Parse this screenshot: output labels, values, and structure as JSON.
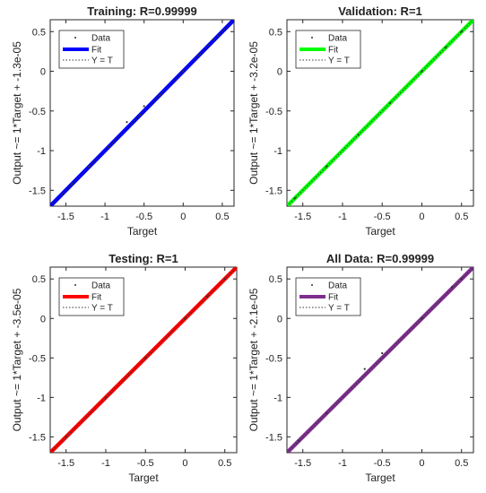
{
  "chart_data": [
    {
      "type": "scatter",
      "title": "Training: R=0.99999",
      "xlabel": "Target",
      "ylabel": "Output ~= 1*Target + -1.3e-05",
      "xlim": [
        -1.7,
        0.65
      ],
      "ylim": [
        -1.7,
        0.65
      ],
      "xticks": [
        "-1.5",
        "-1",
        "-0.5",
        "0",
        "0.5"
      ],
      "yticks": [
        "-1.5",
        "-1",
        "-0.5",
        "0",
        "0.5"
      ],
      "legend": [
        "Data",
        "Fit",
        "Y = T"
      ],
      "legend_position": "top-left",
      "fit_color": "#0000ff",
      "series": [
        {
          "name": "Data",
          "points": [
            [
              -1.55,
              -1.55
            ],
            [
              -1.42,
              -1.42
            ],
            [
              -1.2,
              -1.2
            ],
            [
              -0.95,
              -0.95
            ],
            [
              -0.72,
              -0.64
            ],
            [
              -0.55,
              -0.55
            ],
            [
              -0.5,
              -0.44
            ],
            [
              -0.3,
              -0.3
            ],
            [
              0.0,
              0.0
            ],
            [
              0.2,
              0.2
            ],
            [
              0.33,
              0.33
            ],
            [
              0.38,
              0.4
            ],
            [
              0.45,
              0.45
            ]
          ]
        },
        {
          "name": "Fit",
          "line": [
            [
              -1.7,
              -1.7
            ],
            [
              0.65,
              0.65
            ]
          ]
        },
        {
          "name": "Y = T",
          "line": [
            [
              -1.7,
              -1.7
            ],
            [
              0.65,
              0.65
            ]
          ]
        }
      ]
    },
    {
      "type": "scatter",
      "title": "Validation: R=1",
      "xlabel": "Target",
      "ylabel": "Output ~= 1*Target + -3.2e-05",
      "xlim": [
        -1.7,
        0.65
      ],
      "ylim": [
        -1.7,
        0.65
      ],
      "xticks": [
        "-1.5",
        "-1",
        "-0.5",
        "0",
        "0.5"
      ],
      "yticks": [
        "-1.5",
        "-1",
        "-0.5",
        "0",
        "0.5"
      ],
      "legend": [
        "Data",
        "Fit",
        "Y = T"
      ],
      "legend_position": "top-left",
      "fit_color": "#00ff00",
      "series": [
        {
          "name": "Data",
          "points": [
            [
              -1.6,
              -1.6
            ],
            [
              -1.2,
              -1.2
            ],
            [
              -0.8,
              -0.8
            ],
            [
              -0.4,
              -0.4
            ],
            [
              0.0,
              0.0
            ],
            [
              0.3,
              0.3
            ],
            [
              0.5,
              0.5
            ]
          ]
        },
        {
          "name": "Fit",
          "line": [
            [
              -1.7,
              -1.7
            ],
            [
              0.65,
              0.65
            ]
          ]
        },
        {
          "name": "Y = T",
          "line": [
            [
              -1.7,
              -1.7
            ],
            [
              0.65,
              0.65
            ]
          ]
        }
      ]
    },
    {
      "type": "scatter",
      "title": "Testing: R=1",
      "xlabel": "Target",
      "ylabel": "Output ~= 1*Target + -3.5e-05",
      "xlim": [
        -1.7,
        0.65
      ],
      "ylim": [
        -1.7,
        0.65
      ],
      "xticks": [
        "-1.5",
        "-1",
        "-0.5",
        "0",
        "0.5"
      ],
      "yticks": [
        "-1.5",
        "-1",
        "-0.5",
        "0",
        "0.5"
      ],
      "legend": [
        "Data",
        "Fit",
        "Y = T"
      ],
      "legend_position": "top-left",
      "fit_color": "#ff0000",
      "series": [
        {
          "name": "Data",
          "points": [
            [
              -1.5,
              -1.5
            ],
            [
              -1.0,
              -1.0
            ],
            [
              -0.5,
              -0.5
            ],
            [
              0.0,
              0.0
            ],
            [
              0.28,
              0.28
            ],
            [
              0.5,
              0.5
            ]
          ]
        },
        {
          "name": "Fit",
          "line": [
            [
              -1.7,
              -1.7
            ],
            [
              0.65,
              0.65
            ]
          ]
        },
        {
          "name": "Y = T",
          "line": [
            [
              -1.7,
              -1.7
            ],
            [
              0.65,
              0.65
            ]
          ]
        }
      ]
    },
    {
      "type": "scatter",
      "title": "All Data: R=0.99999",
      "xlabel": "Target",
      "ylabel": "Output ~= 1*Target + -2.1e-05",
      "xlim": [
        -1.7,
        0.65
      ],
      "ylim": [
        -1.7,
        0.65
      ],
      "xticks": [
        "-1.5",
        "-1",
        "-0.5",
        "0",
        "0.5"
      ],
      "yticks": [
        "-1.5",
        "-1",
        "-0.5",
        "0",
        "0.5"
      ],
      "legend": [
        "Data",
        "Fit",
        "Y = T"
      ],
      "legend_position": "top-left",
      "fit_color": "#7e2f8e",
      "series": [
        {
          "name": "Data",
          "points": [
            [
              -1.55,
              -1.55
            ],
            [
              -1.2,
              -1.2
            ],
            [
              -0.72,
              -0.64
            ],
            [
              -0.5,
              -0.44
            ],
            [
              0.0,
              0.0
            ],
            [
              0.38,
              0.4
            ],
            [
              0.5,
              0.5
            ]
          ]
        },
        {
          "name": "Fit",
          "line": [
            [
              -1.7,
              -1.7
            ],
            [
              0.65,
              0.65
            ]
          ]
        },
        {
          "name": "Y = T",
          "line": [
            [
              -1.7,
              -1.7
            ],
            [
              0.65,
              0.65
            ]
          ]
        }
      ]
    }
  ]
}
